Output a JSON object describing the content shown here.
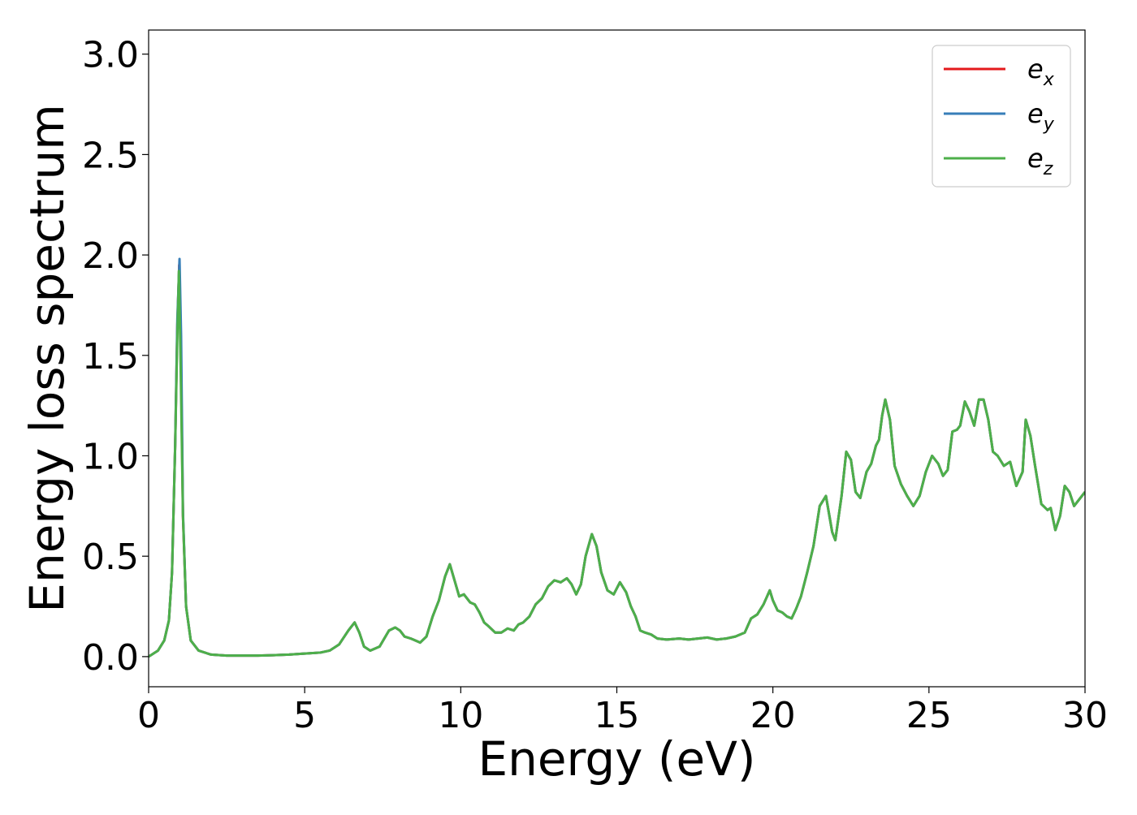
{
  "chart_data": {
    "type": "line",
    "xlabel": "Energy (eV)",
    "ylabel": "Energy loss spectrum",
    "xlim": [
      0,
      30
    ],
    "ylim": [
      -0.15,
      3.12
    ],
    "xticks": [
      0,
      5,
      10,
      15,
      20,
      25,
      30
    ],
    "yticks": [
      0.0,
      0.5,
      1.0,
      1.5,
      2.0,
      2.5,
      3.0
    ],
    "xtick_labels": [
      "0",
      "5",
      "10",
      "15",
      "20",
      "25",
      "30"
    ],
    "ytick_labels": [
      "0.0",
      "0.5",
      "1.0",
      "1.5",
      "2.0",
      "2.5",
      "3.0"
    ],
    "grid": false,
    "legend_position": "top-right",
    "series": [
      {
        "name": "e_x",
        "legend_base": "e",
        "legend_sub": "x",
        "color": "#e41a1c",
        "x": [
          0,
          0.3,
          0.5,
          0.65,
          0.75,
          0.85,
          0.92,
          0.98,
          1.03,
          1.1,
          1.2,
          1.35,
          1.6,
          2.0,
          2.5,
          3.0,
          3.5,
          4.0,
          4.5,
          5.0,
          5.5,
          5.8,
          6.1,
          6.4,
          6.6,
          6.75,
          6.9,
          7.1,
          7.4,
          7.7,
          7.9,
          8.05,
          8.2,
          8.4,
          8.7,
          8.9,
          9.1,
          9.3,
          9.5,
          9.65,
          9.8,
          9.95,
          10.1,
          10.3,
          10.45,
          10.6,
          10.75,
          10.9,
          11.1,
          11.3,
          11.5,
          11.7,
          11.85,
          12.0,
          12.2,
          12.4,
          12.6,
          12.8,
          13.0,
          13.2,
          13.4,
          13.55,
          13.7,
          13.85,
          14.0,
          14.2,
          14.35,
          14.5,
          14.7,
          14.9,
          15.1,
          15.3,
          15.45,
          15.6,
          15.75,
          15.9,
          16.1,
          16.3,
          16.6,
          17.0,
          17.3,
          17.6,
          17.9,
          18.2,
          18.5,
          18.8,
          19.1,
          19.3,
          19.5,
          19.7,
          19.9,
          20.0,
          20.15,
          20.3,
          20.45,
          20.6,
          20.75,
          20.9,
          21.1,
          21.3,
          21.5,
          21.7,
          21.9,
          22.0,
          22.2,
          22.35,
          22.5,
          22.65,
          22.8,
          23.0,
          23.15,
          23.3,
          23.4,
          23.5,
          23.6,
          23.75,
          23.9,
          24.1,
          24.3,
          24.5,
          24.7,
          24.9,
          25.1,
          25.3,
          25.45,
          25.6,
          25.75,
          25.9,
          26.0,
          26.15,
          26.3,
          26.45,
          26.6,
          26.75,
          26.9,
          27.05,
          27.2,
          27.4,
          27.6,
          27.8,
          28.0,
          28.1,
          28.25,
          28.4,
          28.6,
          28.8,
          28.9,
          29.05,
          29.2,
          29.35,
          29.5,
          29.65,
          29.8,
          30.0
        ],
        "y": [
          0.0,
          0.03,
          0.08,
          0.18,
          0.42,
          1.05,
          1.65,
          1.95,
          1.55,
          0.7,
          0.25,
          0.08,
          0.03,
          0.01,
          0.005,
          0.005,
          0.005,
          0.007,
          0.01,
          0.015,
          0.02,
          0.03,
          0.06,
          0.13,
          0.17,
          0.12,
          0.05,
          0.03,
          0.05,
          0.13,
          0.145,
          0.13,
          0.1,
          0.09,
          0.07,
          0.1,
          0.2,
          0.28,
          0.4,
          0.46,
          0.38,
          0.3,
          0.31,
          0.27,
          0.26,
          0.22,
          0.17,
          0.15,
          0.12,
          0.12,
          0.14,
          0.13,
          0.16,
          0.17,
          0.2,
          0.26,
          0.29,
          0.35,
          0.38,
          0.37,
          0.39,
          0.36,
          0.31,
          0.36,
          0.5,
          0.61,
          0.55,
          0.42,
          0.33,
          0.31,
          0.37,
          0.32,
          0.25,
          0.2,
          0.13,
          0.12,
          0.11,
          0.09,
          0.085,
          0.09,
          0.085,
          0.09,
          0.095,
          0.085,
          0.09,
          0.1,
          0.12,
          0.19,
          0.21,
          0.26,
          0.33,
          0.28,
          0.23,
          0.22,
          0.2,
          0.19,
          0.24,
          0.3,
          0.42,
          0.55,
          0.75,
          0.8,
          0.62,
          0.58,
          0.8,
          1.02,
          0.98,
          0.82,
          0.79,
          0.92,
          0.96,
          1.05,
          1.08,
          1.2,
          1.28,
          1.18,
          0.95,
          0.86,
          0.8,
          0.75,
          0.8,
          0.92,
          1.0,
          0.96,
          0.9,
          0.93,
          1.12,
          1.13,
          1.15,
          1.27,
          1.22,
          1.15,
          1.28,
          1.28,
          1.18,
          1.02,
          1.0,
          0.95,
          0.97,
          0.85,
          0.92,
          1.18,
          1.1,
          0.95,
          0.76,
          0.73,
          0.74,
          0.63,
          0.7,
          0.85,
          0.82,
          0.75,
          0.78,
          0.82
        ]
      },
      {
        "name": "e_y",
        "legend_base": "e",
        "legend_sub": "y",
        "color": "#377eb8",
        "x": [
          0,
          0.3,
          0.5,
          0.65,
          0.75,
          0.85,
          0.92,
          0.99,
          1.04,
          1.1,
          1.2,
          1.35,
          1.6,
          2.0,
          2.5,
          3.0,
          3.5,
          4.0,
          4.5,
          5.0,
          5.5,
          5.8,
          6.1,
          6.4,
          6.6,
          6.75,
          6.9,
          7.1,
          7.4,
          7.7,
          7.9,
          8.05,
          8.2,
          8.4,
          8.7,
          8.9,
          9.1,
          9.3,
          9.5,
          9.65,
          9.8,
          9.95,
          10.1,
          10.3,
          10.45,
          10.6,
          10.75,
          10.9,
          11.1,
          11.3,
          11.5,
          11.7,
          11.85,
          12.0,
          12.2,
          12.4,
          12.6,
          12.8,
          13.0,
          13.2,
          13.4,
          13.55,
          13.7,
          13.85,
          14.0,
          14.2,
          14.35,
          14.5,
          14.7,
          14.9,
          15.1,
          15.3,
          15.45,
          15.6,
          15.75,
          15.9,
          16.1,
          16.3,
          16.6,
          17.0,
          17.3,
          17.6,
          17.9,
          18.2,
          18.5,
          18.8,
          19.1,
          19.3,
          19.5,
          19.7,
          19.9,
          20.0,
          20.15,
          20.3,
          20.45,
          20.6,
          20.75,
          20.9,
          21.1,
          21.3,
          21.5,
          21.7,
          21.9,
          22.0,
          22.2,
          22.35,
          22.5,
          22.65,
          22.8,
          23.0,
          23.15,
          23.3,
          23.4,
          23.5,
          23.6,
          23.75,
          23.9,
          24.1,
          24.3,
          24.5,
          24.7,
          24.9,
          25.1,
          25.3,
          25.45,
          25.6,
          25.75,
          25.9,
          26.0,
          26.15,
          26.3,
          26.45,
          26.6,
          26.75,
          26.9,
          27.05,
          27.2,
          27.4,
          27.6,
          27.8,
          28.0,
          28.1,
          28.25,
          28.4,
          28.6,
          28.8,
          28.9,
          29.05,
          29.2,
          29.35,
          29.5,
          29.65,
          29.8,
          30.0
        ],
        "y": [
          0.0,
          0.03,
          0.08,
          0.18,
          0.42,
          1.05,
          1.68,
          1.98,
          1.6,
          0.72,
          0.25,
          0.08,
          0.03,
          0.01,
          0.005,
          0.005,
          0.005,
          0.007,
          0.01,
          0.015,
          0.02,
          0.03,
          0.06,
          0.13,
          0.17,
          0.12,
          0.05,
          0.03,
          0.05,
          0.13,
          0.145,
          0.13,
          0.1,
          0.09,
          0.07,
          0.1,
          0.2,
          0.28,
          0.4,
          0.46,
          0.38,
          0.3,
          0.31,
          0.27,
          0.26,
          0.22,
          0.17,
          0.15,
          0.12,
          0.12,
          0.14,
          0.13,
          0.16,
          0.17,
          0.2,
          0.26,
          0.29,
          0.35,
          0.38,
          0.37,
          0.39,
          0.36,
          0.31,
          0.36,
          0.5,
          0.61,
          0.55,
          0.42,
          0.33,
          0.31,
          0.37,
          0.32,
          0.25,
          0.2,
          0.13,
          0.12,
          0.11,
          0.09,
          0.085,
          0.09,
          0.085,
          0.09,
          0.095,
          0.085,
          0.09,
          0.1,
          0.12,
          0.19,
          0.21,
          0.26,
          0.33,
          0.28,
          0.23,
          0.22,
          0.2,
          0.19,
          0.24,
          0.3,
          0.42,
          0.55,
          0.75,
          0.8,
          0.62,
          0.58,
          0.8,
          1.02,
          0.98,
          0.82,
          0.79,
          0.92,
          0.96,
          1.05,
          1.08,
          1.2,
          1.28,
          1.18,
          0.95,
          0.86,
          0.8,
          0.75,
          0.8,
          0.92,
          1.0,
          0.96,
          0.9,
          0.93,
          1.12,
          1.13,
          1.15,
          1.27,
          1.22,
          1.15,
          1.28,
          1.28,
          1.18,
          1.02,
          1.0,
          0.95,
          0.97,
          0.85,
          0.92,
          1.18,
          1.1,
          0.95,
          0.76,
          0.73,
          0.74,
          0.63,
          0.7,
          0.85,
          0.82,
          0.75,
          0.78,
          0.82
        ]
      },
      {
        "name": "e_z",
        "legend_base": "e",
        "legend_sub": "z",
        "color": "#4daf4a",
        "x": [
          0,
          0.3,
          0.5,
          0.65,
          0.75,
          0.85,
          0.92,
          0.97,
          1.02,
          1.1,
          1.2,
          1.35,
          1.6,
          2.0,
          2.5,
          3.0,
          3.5,
          4.0,
          4.5,
          5.0,
          5.5,
          5.8,
          6.1,
          6.4,
          6.6,
          6.75,
          6.9,
          7.1,
          7.4,
          7.7,
          7.9,
          8.05,
          8.2,
          8.4,
          8.7,
          8.9,
          9.1,
          9.3,
          9.5,
          9.65,
          9.8,
          9.95,
          10.1,
          10.3,
          10.45,
          10.6,
          10.75,
          10.9,
          11.1,
          11.3,
          11.5,
          11.7,
          11.85,
          12.0,
          12.2,
          12.4,
          12.6,
          12.8,
          13.0,
          13.2,
          13.4,
          13.55,
          13.7,
          13.85,
          14.0,
          14.2,
          14.35,
          14.5,
          14.7,
          14.9,
          15.1,
          15.3,
          15.45,
          15.6,
          15.75,
          15.9,
          16.1,
          16.3,
          16.6,
          17.0,
          17.3,
          17.6,
          17.9,
          18.2,
          18.5,
          18.8,
          19.1,
          19.3,
          19.5,
          19.7,
          19.9,
          20.0,
          20.15,
          20.3,
          20.45,
          20.6,
          20.75,
          20.9,
          21.1,
          21.3,
          21.5,
          21.7,
          21.9,
          22.0,
          22.2,
          22.35,
          22.5,
          22.65,
          22.8,
          23.0,
          23.15,
          23.3,
          23.4,
          23.5,
          23.6,
          23.75,
          23.9,
          24.1,
          24.3,
          24.5,
          24.7,
          24.9,
          25.1,
          25.3,
          25.45,
          25.6,
          25.75,
          25.9,
          26.0,
          26.15,
          26.3,
          26.45,
          26.6,
          26.75,
          26.9,
          27.05,
          27.2,
          27.4,
          27.6,
          27.8,
          28.0,
          28.1,
          28.25,
          28.4,
          28.6,
          28.8,
          28.9,
          29.05,
          29.2,
          29.35,
          29.5,
          29.65,
          29.8,
          30.0
        ],
        "y": [
          0.0,
          0.03,
          0.08,
          0.18,
          0.42,
          1.05,
          1.6,
          1.92,
          1.5,
          0.7,
          0.25,
          0.08,
          0.03,
          0.01,
          0.005,
          0.005,
          0.005,
          0.007,
          0.01,
          0.015,
          0.02,
          0.03,
          0.06,
          0.13,
          0.17,
          0.12,
          0.05,
          0.03,
          0.05,
          0.13,
          0.145,
          0.13,
          0.1,
          0.09,
          0.07,
          0.1,
          0.2,
          0.28,
          0.4,
          0.46,
          0.38,
          0.3,
          0.31,
          0.27,
          0.26,
          0.22,
          0.17,
          0.15,
          0.12,
          0.12,
          0.14,
          0.13,
          0.16,
          0.17,
          0.2,
          0.26,
          0.29,
          0.35,
          0.38,
          0.37,
          0.39,
          0.36,
          0.31,
          0.36,
          0.5,
          0.61,
          0.55,
          0.42,
          0.33,
          0.31,
          0.37,
          0.32,
          0.25,
          0.2,
          0.13,
          0.12,
          0.11,
          0.09,
          0.085,
          0.09,
          0.085,
          0.09,
          0.095,
          0.085,
          0.09,
          0.1,
          0.12,
          0.19,
          0.21,
          0.26,
          0.33,
          0.28,
          0.23,
          0.22,
          0.2,
          0.19,
          0.24,
          0.3,
          0.42,
          0.55,
          0.75,
          0.8,
          0.62,
          0.58,
          0.8,
          1.02,
          0.98,
          0.82,
          0.79,
          0.92,
          0.96,
          1.05,
          1.08,
          1.2,
          1.28,
          1.18,
          0.95,
          0.86,
          0.8,
          0.75,
          0.8,
          0.92,
          1.0,
          0.96,
          0.9,
          0.93,
          1.12,
          1.13,
          1.15,
          1.27,
          1.22,
          1.15,
          1.28,
          1.28,
          1.18,
          1.02,
          1.0,
          0.95,
          0.97,
          0.85,
          0.92,
          1.18,
          1.1,
          0.95,
          0.76,
          0.73,
          0.74,
          0.63,
          0.7,
          0.85,
          0.82,
          0.75,
          0.78,
          0.82
        ]
      }
    ]
  }
}
